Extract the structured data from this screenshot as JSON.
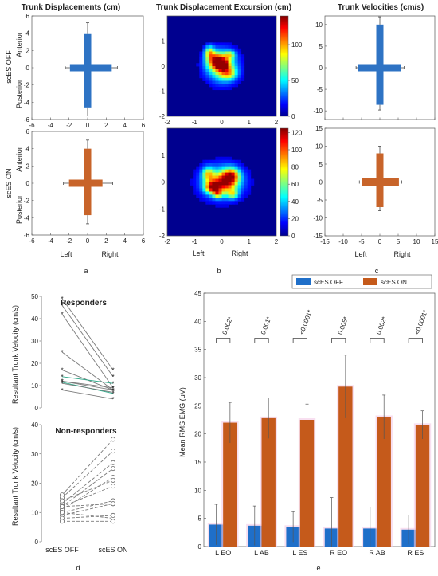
{
  "figure": {
    "panel_letters": [
      "a",
      "b",
      "c",
      "d",
      "e"
    ],
    "row_labels": [
      "scES OFF",
      "scES ON"
    ],
    "anterior": "Anterior",
    "posterior": "Posterior",
    "left": "Left",
    "right": "Right"
  },
  "chart_data": [
    {
      "id": "a",
      "type": "cross",
      "title": "Trunk Displacements (cm)",
      "xlim": [
        -6,
        6
      ],
      "ylim": [
        -6,
        6
      ],
      "xticks": [
        -6,
        -4,
        -2,
        0,
        2,
        4,
        6
      ],
      "yticks": [
        -6,
        -4,
        -2,
        0,
        2,
        4,
        6
      ],
      "conditions": [
        {
          "name": "scES OFF",
          "color": "#2e73c4",
          "left": -1.9,
          "right": 2.6,
          "left_sd": 0.5,
          "right_sd": 0.6,
          "anterior": 3.9,
          "posterior": -4.6,
          "anterior_sd": 1.3,
          "posterior_sd": 1.0
        },
        {
          "name": "scES ON",
          "color": "#c8642a",
          "left": -2.0,
          "right": 1.6,
          "left_sd": 0.6,
          "right_sd": 1.1,
          "anterior": 4.0,
          "posterior": -3.7,
          "anterior_sd": 1.0,
          "posterior_sd": 1.0
        }
      ]
    },
    {
      "id": "b",
      "type": "heatmap",
      "title": "Trunk Displacement Excursion (cm)",
      "xlim": [
        -2,
        2
      ],
      "ylim": [
        -2,
        2
      ],
      "xticks": [
        -2,
        -1,
        0,
        1,
        2
      ],
      "yticks": [
        -2,
        -1,
        0,
        1
      ],
      "colorbar_off": {
        "max": 140,
        "ticks": [
          0,
          50,
          100
        ]
      },
      "colorbar_on": {
        "max": 125,
        "ticks": [
          0,
          20,
          40,
          60,
          80,
          100,
          120
        ]
      },
      "blobs_off": [
        {
          "x": 0.0,
          "y": 0.0,
          "sx": 0.38,
          "sy": 0.42,
          "v": 0.55
        },
        {
          "x": -0.2,
          "y": 0.2,
          "sx": 0.22,
          "sy": 0.22,
          "v": 0.6
        },
        {
          "x": 0.05,
          "y": 0.05,
          "sx": 0.14,
          "sy": 0.14,
          "v": 0.55
        },
        {
          "x": 0.25,
          "y": -0.3,
          "sx": 0.22,
          "sy": 0.18,
          "v": 0.35
        },
        {
          "x": -0.45,
          "y": 0.55,
          "sx": 0.12,
          "sy": 0.18,
          "v": 0.45
        },
        {
          "x": 0.3,
          "y": 0.45,
          "sx": 0.14,
          "sy": 0.12,
          "v": 0.35
        }
      ],
      "blobs_on": [
        {
          "x": 0.0,
          "y": 0.0,
          "sx": 0.5,
          "sy": 0.4,
          "v": 0.5
        },
        {
          "x": 0.35,
          "y": 0.25,
          "sx": 0.22,
          "sy": 0.2,
          "v": 0.55
        },
        {
          "x": -0.35,
          "y": -0.2,
          "sx": 0.18,
          "sy": 0.15,
          "v": 0.6
        },
        {
          "x": 0.1,
          "y": -0.05,
          "sx": 0.3,
          "sy": 0.22,
          "v": 0.35
        },
        {
          "x": -0.5,
          "y": 0.3,
          "sx": 0.15,
          "sy": 0.18,
          "v": 0.4
        },
        {
          "x": 0.4,
          "y": -0.45,
          "sx": 0.15,
          "sy": 0.12,
          "v": 0.35
        },
        {
          "x": -0.15,
          "y": -0.45,
          "sx": 0.12,
          "sy": 0.1,
          "v": 0.4
        }
      ]
    },
    {
      "id": "c",
      "type": "cross",
      "title": "Trunk Velocities (cm/s)",
      "xlim": [
        -15,
        15
      ],
      "xticks": [
        -15,
        -10,
        -5,
        0,
        5,
        10,
        15
      ],
      "ylim_off": [
        -12,
        12
      ],
      "yticks_off": [
        -10,
        -5,
        0,
        5,
        10
      ],
      "ylim_on": [
        -15,
        15
      ],
      "yticks_on": [
        -15,
        -10,
        -5,
        0,
        5,
        10,
        15
      ],
      "conditions": [
        {
          "name": "scES OFF",
          "color": "#2e73c4",
          "left": -6.0,
          "right": 5.8,
          "left_sd": 0.5,
          "right_sd": 0.8,
          "anterior": 10.0,
          "posterior": -8.6,
          "anterior_sd": 1.8,
          "posterior_sd": 1.2
        },
        {
          "name": "scES ON",
          "color": "#c8642a",
          "left": -5.0,
          "right": 5.2,
          "left_sd": 0.6,
          "right_sd": 0.8,
          "anterior": 8.0,
          "posterior": -7.0,
          "anterior_sd": 2.0,
          "posterior_sd": 1.0
        }
      ]
    },
    {
      "id": "d",
      "type": "paired-line",
      "ylabel": "Resultant Trunk Velocity (cm/s)",
      "categories": [
        "scES OFF",
        "scES ON"
      ],
      "groups": [
        {
          "title": "Responders",
          "ylim": [
            0,
            50
          ],
          "yticks": [
            0,
            10,
            20,
            30,
            40,
            50
          ],
          "pairs": [
            [
              49,
              17
            ],
            [
              46,
              14
            ],
            [
              42,
              9
            ],
            [
              25,
              8
            ],
            [
              17,
              8
            ],
            [
              14,
              11
            ],
            [
              12,
              8
            ],
            [
              12,
              9
            ],
            [
              11.5,
              6.5
            ],
            [
              11,
              7
            ],
            [
              8,
              4
            ]
          ]
        },
        {
          "title": "Non-responders",
          "ylim": [
            0,
            40
          ],
          "yticks": [
            0,
            10,
            20,
            30,
            40
          ],
          "pairs": [
            [
              16,
              35
            ],
            [
              15,
              31
            ],
            [
              13,
              27
            ],
            [
              12,
              25
            ],
            [
              11,
              22
            ],
            [
              10,
              14
            ],
            [
              12,
              13
            ],
            [
              9,
              13
            ],
            [
              10,
              8
            ],
            [
              8,
              9
            ],
            [
              7,
              7
            ],
            [
              14,
              21
            ],
            [
              12,
              19
            ]
          ]
        }
      ]
    },
    {
      "id": "e",
      "type": "bar",
      "ylabel": "Mean RMS EMG (μV)",
      "ylim": [
        0,
        45
      ],
      "yticks": [
        0,
        5,
        10,
        15,
        20,
        25,
        30,
        35,
        40,
        45
      ],
      "categories": [
        "L EO",
        "L AB",
        "L ES",
        "R EO",
        "R AB",
        "R ES"
      ],
      "series": [
        {
          "name": "scES OFF",
          "color": "#1f6fc9",
          "values": [
            3.9,
            3.7,
            3.5,
            3.2,
            3.2,
            3.0
          ],
          "err": [
            3.6,
            3.5,
            2.7,
            5.5,
            3.8,
            2.6
          ]
        },
        {
          "name": "scES ON",
          "color": "#c55a1b",
          "values": [
            22.0,
            22.8,
            22.5,
            28.4,
            23.0,
            21.6
          ],
          "err": [
            3.6,
            3.6,
            2.8,
            5.6,
            3.9,
            2.5
          ]
        }
      ],
      "pvalues": [
        "0.002*",
        "0.001*",
        "<0.0001*",
        "0.005*",
        "0.002*",
        "<0.0001*"
      ]
    }
  ]
}
